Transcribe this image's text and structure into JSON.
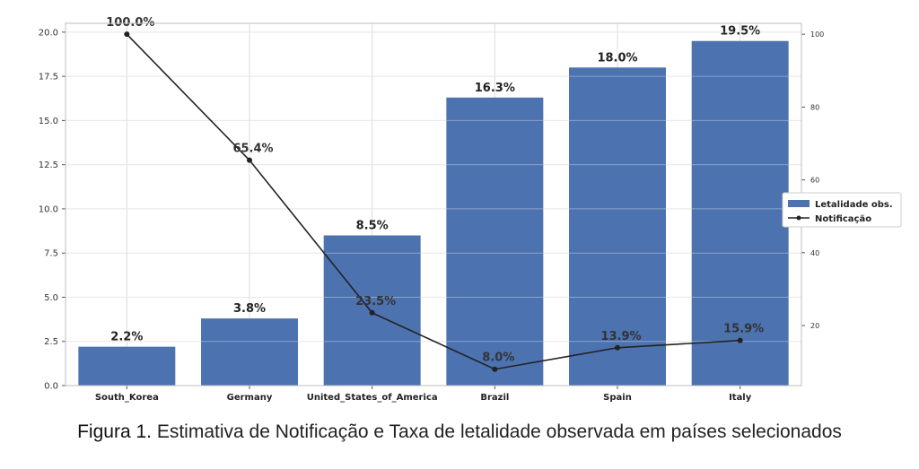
{
  "chart_data": {
    "type": "bar",
    "categories": [
      "South_Korea",
      "Germany",
      "United_States_of_America",
      "Brazil",
      "Spain",
      "Italy"
    ],
    "series": [
      {
        "name": "Letalidade obs.",
        "axis": "left",
        "kind": "bar",
        "color": "#4c72b0",
        "values": [
          2.2,
          3.8,
          8.5,
          16.3,
          18.0,
          19.5
        ],
        "labels": [
          "2.2%",
          "3.8%",
          "8.5%",
          "16.3%",
          "18.0%",
          "19.5%"
        ]
      },
      {
        "name": "Notificação",
        "axis": "right",
        "kind": "line",
        "color": "#222222",
        "values": [
          100.0,
          65.4,
          23.5,
          8.0,
          13.9,
          15.9
        ],
        "labels": [
          "100.0%",
          "65.4%",
          "23.5%",
          "8.0%",
          "13.9%",
          "15.9%"
        ]
      }
    ],
    "ylim": [
      0,
      20.5
    ],
    "yticks": [
      "0.0",
      "2.5",
      "5.0",
      "7.5",
      "10.0",
      "12.5",
      "15.0",
      "17.5",
      "20.0"
    ],
    "y2lim": [
      3.5,
      103
    ],
    "y2ticks": [
      "20",
      "40",
      "60",
      "80",
      "100"
    ],
    "grid": true,
    "legend_position": "center-right"
  },
  "caption": {
    "prefix": "Figura 1.",
    "text": " Estimativa de Notificação e Taxa de letalidade observada em países selecionados"
  }
}
